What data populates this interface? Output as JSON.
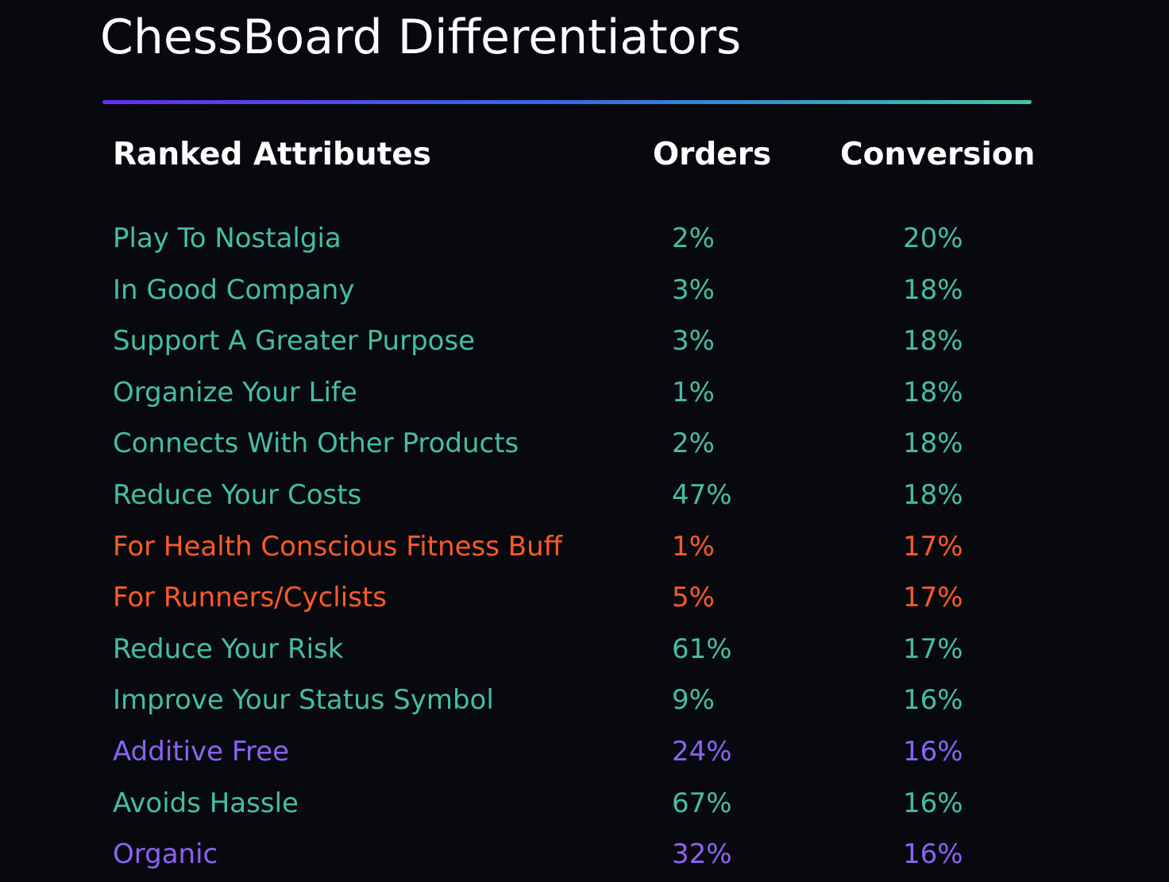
{
  "title": "ChessBoard Differentiators",
  "colors": {
    "teal": "#45bea3",
    "orange": "#ff5a2a",
    "purple": "#8b63f5",
    "background": "#08090e",
    "text": "#ffffff"
  },
  "table": {
    "headers": {
      "attribute": "Ranked Attributes",
      "orders": "Orders",
      "conversion": "Conversion"
    },
    "rows": [
      {
        "attribute": "Play To Nostalgia",
        "orders": "2%",
        "conversion": "20%",
        "color": "#45bea3"
      },
      {
        "attribute": "In Good Company",
        "orders": "3%",
        "conversion": "18%",
        "color": "#45bea3"
      },
      {
        "attribute": "Support A Greater Purpose",
        "orders": "3%",
        "conversion": "18%",
        "color": "#45bea3"
      },
      {
        "attribute": "Organize Your Life",
        "orders": "1%",
        "conversion": "18%",
        "color": "#45bea3"
      },
      {
        "attribute": "Connects With Other Products",
        "orders": "2%",
        "conversion": "18%",
        "color": "#45bea3"
      },
      {
        "attribute": "Reduce Your Costs",
        "orders": "47%",
        "conversion": "18%",
        "color": "#45bea3"
      },
      {
        "attribute": "For Health Conscious Fitness Buff",
        "orders": "1%",
        "conversion": "17%",
        "color": "#ff5a2a"
      },
      {
        "attribute": "For Runners/Cyclists",
        "orders": "5%",
        "conversion": "17%",
        "color": "#ff5a2a"
      },
      {
        "attribute": "Reduce Your Risk",
        "orders": "61%",
        "conversion": "17%",
        "color": "#45bea3"
      },
      {
        "attribute": "Improve Your Status Symbol",
        "orders": "9%",
        "conversion": "16%",
        "color": "#45bea3"
      },
      {
        "attribute": "Additive Free",
        "orders": "24%",
        "conversion": "16%",
        "color": "#8b63f5"
      },
      {
        "attribute": "Avoids Hassle",
        "orders": "67%",
        "conversion": "16%",
        "color": "#45bea3"
      },
      {
        "attribute": "Organic",
        "orders": "32%",
        "conversion": "16%",
        "color": "#8b63f5"
      }
    ]
  }
}
